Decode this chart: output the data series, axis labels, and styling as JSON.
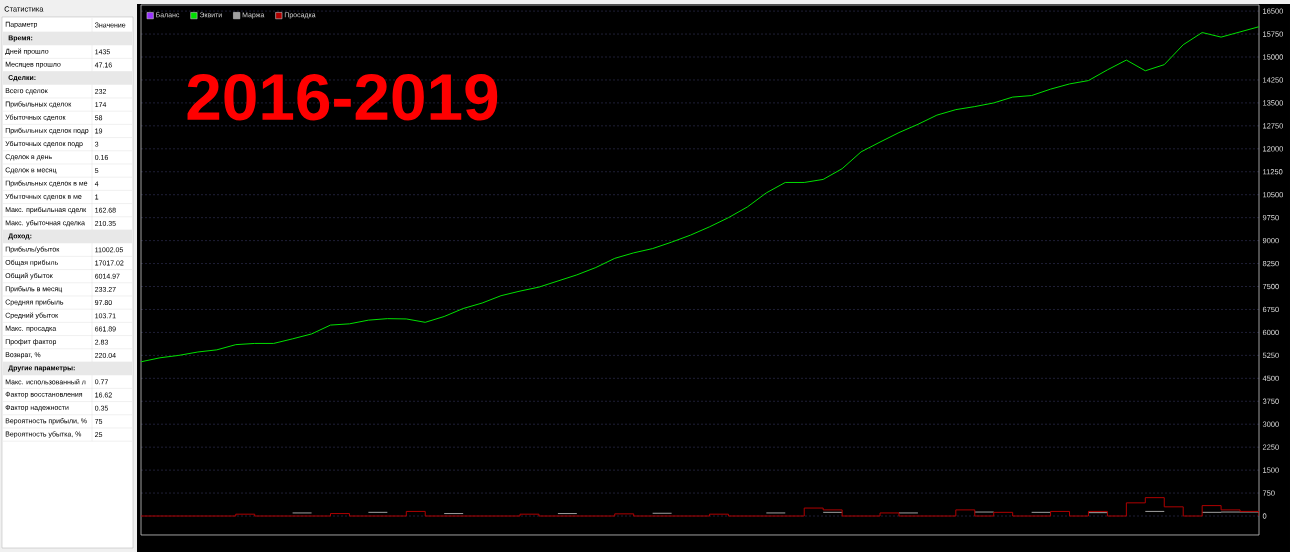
{
  "chart_data": [
    {
      "type": "other",
      "title": "Статистика",
      "annotations": [
        "Параметр",
        "Значение",
        "Время:",
        "Сделки:",
        "Доход:",
        "Другие параметры:"
      ],
      "categories": [
        null,
        "Дней прошло",
        "Месяцев прошло",
        null,
        "Всего сделок",
        "Прибыльных сделок",
        "Убыточных сделок",
        "Прибыльных сделок подр",
        "Убыточных сделок подр",
        "Сделок в день",
        "Сделок в месяц",
        "Прибыльных сделок в ме",
        "Убыточных сделок в ме",
        "Макс. прибыльная сделк",
        "Макс. убыточная сделка",
        null,
        "Прибыль/убыток",
        "Общая прибыль",
        "Общий убыток",
        "Прибыль в месяц",
        "Средняя прибыль",
        "Средний убыток",
        "Макс. просадка",
        "Профит фактор",
        "Возврат, %",
        null,
        "Макс. использованный л",
        "Фактор восстановления",
        "Фактор надежности",
        "Вероятность прибыли, %",
        "Вероятность убытка, %"
      ],
      "value_labels": [
        null,
        "1435",
        "47.16",
        null,
        "232",
        "174",
        "58",
        "19",
        "3",
        "0.16",
        "5",
        "4",
        "1",
        "162.68",
        "210.35",
        null,
        "11002.05",
        "17017.02",
        "6014.97",
        "233.27",
        "97.80",
        "103.71",
        "661.89",
        "2.83",
        "220.04",
        null,
        "0.77",
        "16.62",
        "0.35",
        "75",
        "25"
      ]
    },
    {
      "type": "line",
      "title": "2016-2019",
      "categories": [
        null,
        null,
        null,
        null,
        null,
        null,
        null,
        null,
        null,
        null,
        null,
        null,
        null,
        null,
        null,
        null,
        null,
        null,
        null,
        null,
        null,
        null,
        null,
        null,
        null,
        null,
        null,
        null,
        null,
        null,
        null,
        null,
        null,
        null,
        null,
        null,
        null,
        null,
        null,
        null,
        null,
        null,
        null,
        null,
        null,
        null,
        null,
        null,
        null,
        null,
        null,
        null,
        null,
        null,
        null,
        null,
        null,
        null,
        null,
        null
      ],
      "ylim": [
        -620,
        16700
      ],
      "yticks": [
        0,
        750,
        1500,
        2250,
        3000,
        3750,
        4500,
        5250,
        6000,
        6750,
        7500,
        8250,
        9000,
        9750,
        10500,
        11250,
        12000,
        12750,
        13500,
        14250,
        15000,
        15750,
        16500
      ],
      "grid": "y",
      "legend": "top left",
      "tick_labels": "y",
      "series": [
        {
          "name": "Баланс",
          "color": "#9933ff",
          "values": [
            null,
            null,
            null,
            null,
            null,
            null,
            null,
            null,
            null,
            null,
            null,
            null,
            null,
            null,
            null,
            null,
            null,
            null,
            null,
            null,
            null,
            null,
            null,
            null,
            null,
            null,
            null,
            null,
            null,
            null,
            null,
            null,
            null,
            null,
            null,
            null,
            null,
            null,
            null,
            null,
            null,
            null,
            null,
            null,
            null,
            null,
            null,
            null,
            null,
            null,
            null,
            null,
            null,
            null,
            null,
            null,
            null,
            null,
            null,
            null
          ]
        },
        {
          "name": "Эквити",
          "color": "#00e000",
          "values": [
            5040,
            5170,
            5250,
            5360,
            5430,
            5600,
            5640,
            5640,
            5790,
            5950,
            6240,
            6280,
            6400,
            6450,
            6440,
            6330,
            6520,
            6780,
            6960,
            7200,
            7350,
            7480,
            7680,
            7880,
            8120,
            8420,
            8600,
            8740,
            8950,
            9180,
            9450,
            9750,
            10100,
            10560,
            10900,
            10900,
            11000,
            11350,
            11900,
            12220,
            12530,
            12800,
            13100,
            13280,
            13380,
            13500,
            13690,
            13740,
            13950,
            14120,
            14230,
            14580,
            14900,
            14550,
            14750,
            15400,
            15800,
            15650,
            15820,
            15990
          ]
        },
        {
          "name": "Маржа",
          "color": "#a0a0a0",
          "type": "step",
          "values": [
            null,
            null,
            null,
            null,
            null,
            null,
            null,
            null,
            100,
            100,
            null,
            null,
            120,
            120,
            null,
            null,
            80,
            80,
            null,
            null,
            null,
            null,
            80,
            80,
            null,
            null,
            null,
            90,
            90,
            null,
            null,
            null,
            null,
            100,
            100,
            null,
            120,
            120,
            null,
            null,
            100,
            100,
            null,
            null,
            130,
            130,
            null,
            120,
            120,
            null,
            110,
            110,
            null,
            150,
            150,
            null,
            120,
            130,
            130,
            140
          ]
        },
        {
          "name": "Просадка",
          "color": "#b00000",
          "type": "step",
          "values": [
            0,
            0,
            0,
            0,
            0,
            60,
            0,
            0,
            0,
            0,
            80,
            0,
            0,
            0,
            150,
            0,
            0,
            0,
            0,
            0,
            60,
            0,
            0,
            0,
            0,
            70,
            0,
            0,
            0,
            0,
            60,
            0,
            0,
            0,
            0,
            260,
            200,
            0,
            0,
            100,
            0,
            0,
            0,
            200,
            0,
            120,
            0,
            0,
            150,
            0,
            150,
            0,
            430,
            600,
            300,
            0,
            340,
            200,
            150,
            0
          ]
        }
      ]
    }
  ]
}
